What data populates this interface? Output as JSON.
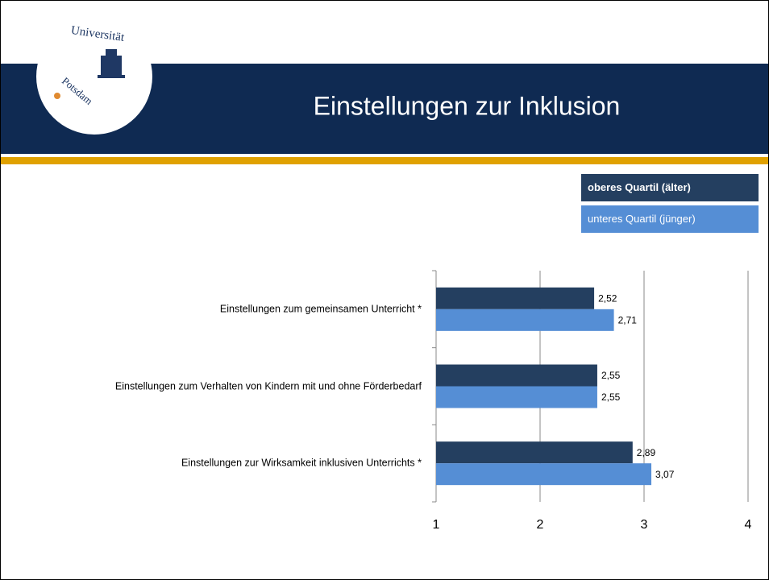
{
  "logo": {
    "top": "Universität",
    "bottom": "Potsdam"
  },
  "chart_data": {
    "type": "hbar",
    "title": "Einstellungen zur Inklusion",
    "categories": [
      "Einstellungen zum gemeinsamen Unterricht *",
      "Einstellungen zum Verhalten von Kindern mit und ohne Förderbedarf",
      "Einstellungen zur Wirksamkeit inklusiven Unterrichts *"
    ],
    "series": [
      {
        "name": "oberes Quartil (älter)",
        "color": "#243f60",
        "values": [
          2.52,
          2.55,
          2.89
        ],
        "value_labels": [
          "2,52",
          "2,55",
          "2,89"
        ]
      },
      {
        "name": "unteres Quartil (jünger)",
        "color": "#558ed5",
        "values": [
          2.71,
          2.55,
          3.07
        ],
        "value_labels": [
          "2,71",
          "2,55",
          "3,07"
        ]
      }
    ],
    "xlim": [
      1,
      4
    ],
    "xticks": [
      1,
      2,
      3,
      4
    ],
    "grid": true,
    "legend": "top-right"
  }
}
